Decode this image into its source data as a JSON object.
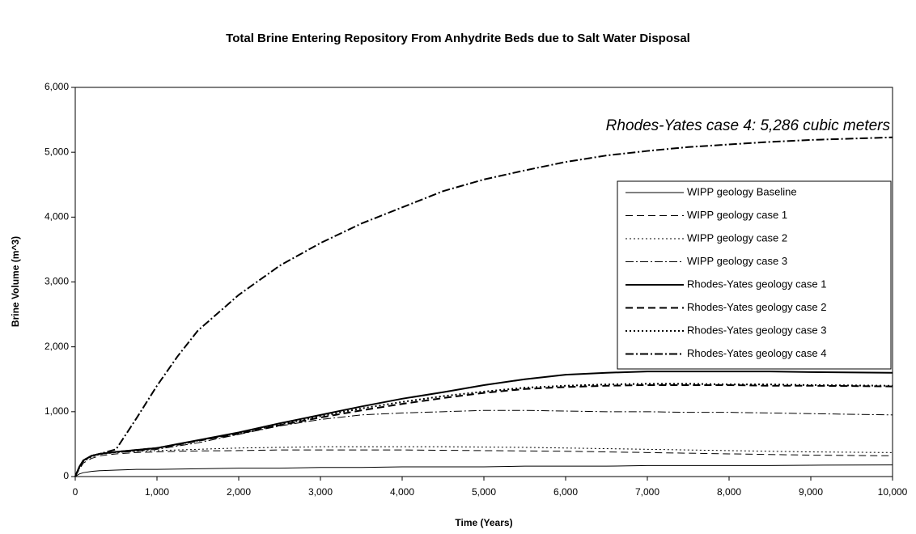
{
  "chart_data": {
    "type": "line",
    "title": "Total Brine Entering Repository From Anhydrite Beds due to Salt Water Disposal",
    "x_label": "Time (Years)",
    "y_label": "Brine Volume (m^3)",
    "annotation": "Rhodes-Yates case 4: 5,286 cubic meters",
    "x": [
      0,
      50,
      100,
      200,
      300,
      500,
      750,
      1000,
      1250,
      1500,
      2000,
      2500,
      3000,
      3500,
      4000,
      4500,
      5000,
      5500,
      6000,
      6500,
      7000,
      7500,
      8000,
      8500,
      9000,
      10000
    ],
    "xlim": [
      0,
      10000
    ],
    "xticks": [
      0,
      {
        "value": 1000,
        "label": "1,000"
      },
      {
        "value": 2000,
        "label": "2,000"
      },
      {
        "value": 3000,
        "label": "3,000"
      },
      {
        "value": 4000,
        "label": "4,000"
      },
      {
        "value": 5000,
        "label": "5,000"
      },
      {
        "value": 6000,
        "label": "6,000"
      },
      {
        "value": 7000,
        "label": "7,000"
      },
      {
        "value": 8000,
        "label": "8,000"
      },
      {
        "value": 9000,
        "label": "9,000"
      },
      {
        "value": 10000,
        "label": "10,000"
      }
    ],
    "ylim": [
      0,
      6000
    ],
    "yticks": [
      0,
      {
        "value": 1000,
        "label": "1,000"
      },
      {
        "value": 2000,
        "label": "2,000"
      },
      {
        "value": 3000,
        "label": "3,000"
      },
      {
        "value": 4000,
        "label": "4,000"
      },
      {
        "value": 5000,
        "label": "5,000"
      },
      {
        "value": 6000,
        "label": "6,000"
      }
    ],
    "grid": false,
    "legend": "right",
    "series": [
      {
        "name": "WIPP geology Baseline",
        "color": "#000000",
        "line_style": "solid",
        "line_width": 1,
        "values": [
          0,
          40,
          60,
          80,
          90,
          100,
          110,
          110,
          115,
          120,
          130,
          130,
          140,
          140,
          150,
          150,
          150,
          160,
          160,
          160,
          170,
          170,
          170,
          170,
          175,
          180
        ]
      },
      {
        "name": "WIPP geology case 1",
        "color": "#000000",
        "line_style": "dashed",
        "line_width": 1,
        "values": [
          0,
          110,
          210,
          280,
          320,
          350,
          370,
          380,
          390,
          395,
          400,
          410,
          410,
          410,
          410,
          405,
          400,
          395,
          390,
          380,
          370,
          360,
          350,
          340,
          330,
          320
        ]
      },
      {
        "name": "WIPP geology case 2",
        "color": "#000000",
        "line_style": "dotted",
        "line_width": 1,
        "values": [
          0,
          120,
          230,
          300,
          340,
          370,
          390,
          400,
          410,
          420,
          440,
          450,
          460,
          460,
          460,
          460,
          455,
          450,
          440,
          430,
          420,
          410,
          400,
          390,
          380,
          370
        ]
      },
      {
        "name": "WIPP geology case 3",
        "color": "#000000",
        "line_style": "dashdot",
        "line_width": 1,
        "values": [
          0,
          150,
          250,
          320,
          350,
          370,
          390,
          420,
          470,
          520,
          650,
          780,
          880,
          950,
          980,
          1000,
          1020,
          1020,
          1010,
          1000,
          1000,
          990,
          990,
          980,
          970,
          950
        ]
      },
      {
        "name": "Rhodes-Yates geology case 1",
        "color": "#000000",
        "line_style": "solid",
        "line_width": 2,
        "values": [
          0,
          150,
          250,
          320,
          350,
          380,
          410,
          440,
          500,
          560,
          680,
          820,
          950,
          1080,
          1200,
          1300,
          1410,
          1500,
          1570,
          1600,
          1620,
          1620,
          1620,
          1620,
          1610,
          1600
        ]
      },
      {
        "name": "Rhodes-Yates geology case 2",
        "color": "#000000",
        "line_style": "dashed",
        "line_width": 2,
        "values": [
          0,
          150,
          250,
          320,
          350,
          380,
          410,
          440,
          490,
          550,
          660,
          790,
          910,
          1020,
          1120,
          1210,
          1290,
          1350,
          1380,
          1400,
          1410,
          1410,
          1410,
          1400,
          1400,
          1390
        ]
      },
      {
        "name": "Rhodes-Yates geology case 3",
        "color": "#000000",
        "line_style": "dotted",
        "line_width": 2,
        "values": [
          0,
          150,
          250,
          320,
          350,
          380,
          410,
          440,
          495,
          555,
          670,
          800,
          930,
          1050,
          1150,
          1240,
          1310,
          1370,
          1400,
          1420,
          1430,
          1430,
          1420,
          1420,
          1410,
          1400
        ]
      },
      {
        "name": "Rhodes-Yates geology case 4",
        "color": "#000000",
        "line_style": "dashdot",
        "line_width": 2,
        "values": [
          0,
          150,
          250,
          320,
          350,
          420,
          900,
          1400,
          1850,
          2250,
          2800,
          3250,
          3600,
          3900,
          4150,
          4400,
          4580,
          4720,
          4850,
          4950,
          5020,
          5080,
          5120,
          5160,
          5190,
          5230
        ]
      }
    ]
  }
}
